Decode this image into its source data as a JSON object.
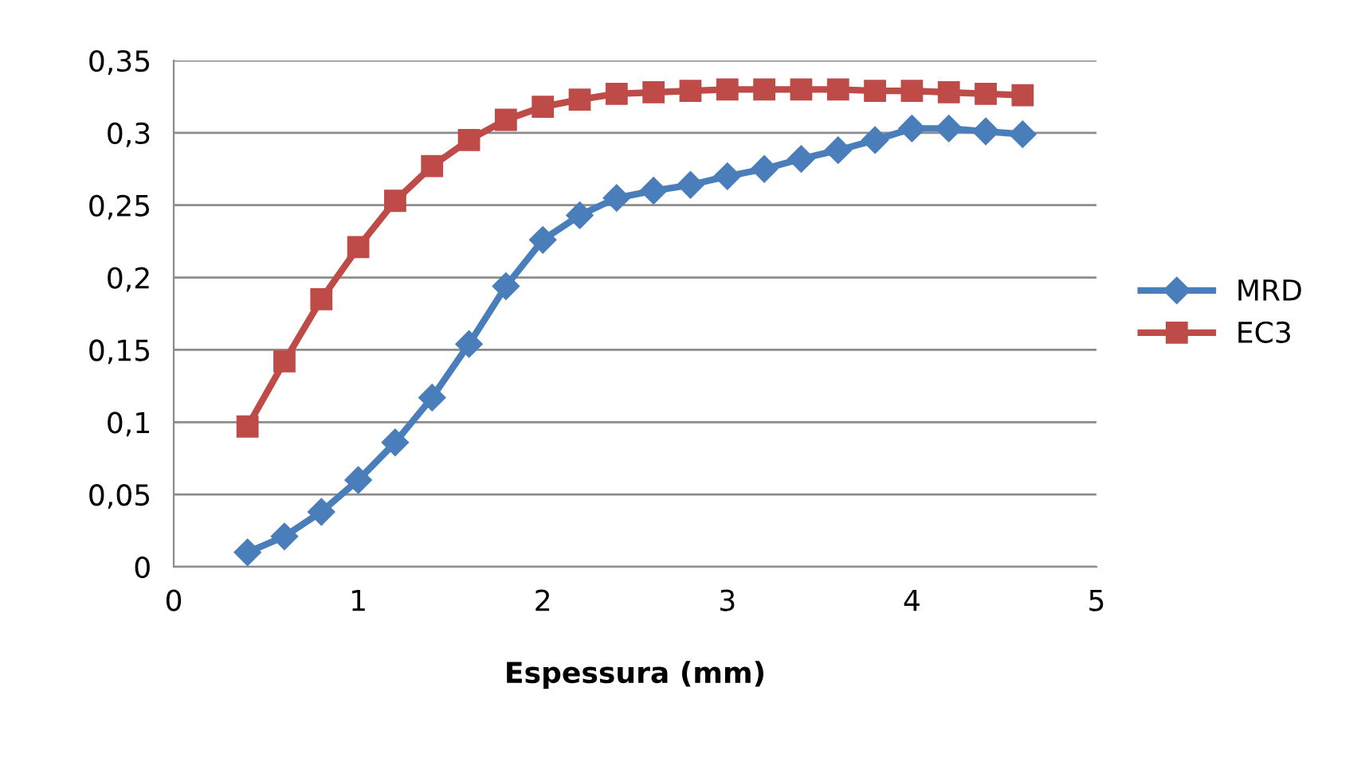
{
  "chart_data": {
    "type": "line",
    "xlabel": "Espessura (mm)",
    "x": [
      0.4,
      0.6,
      0.8,
      1.0,
      1.2,
      1.4,
      1.6,
      1.8,
      2.0,
      2.2,
      2.4,
      2.6,
      2.8,
      3.0,
      3.2,
      3.4,
      3.6,
      3.8,
      4.0,
      4.2,
      4.4,
      4.6
    ],
    "series": [
      {
        "name": "MRD",
        "color": "#4a7ebb",
        "marker": "diamond",
        "values": [
          0.01,
          0.021,
          0.038,
          0.06,
          0.086,
          0.117,
          0.154,
          0.194,
          0.226,
          0.243,
          0.255,
          0.26,
          0.264,
          0.27,
          0.275,
          0.282,
          0.288,
          0.295,
          0.303,
          0.303,
          0.301,
          0.299
        ]
      },
      {
        "name": "EC3",
        "color": "#be4b48",
        "marker": "square",
        "values": [
          0.097,
          0.142,
          0.185,
          0.221,
          0.253,
          0.277,
          0.295,
          0.309,
          0.318,
          0.323,
          0.327,
          0.328,
          0.329,
          0.33,
          0.33,
          0.33,
          0.33,
          0.329,
          0.329,
          0.328,
          0.327,
          0.326
        ]
      }
    ],
    "xlim": [
      0,
      5
    ],
    "xticks": [
      0,
      1,
      2,
      3,
      4,
      5
    ],
    "ylim": [
      0,
      0.35
    ],
    "yticks": [
      {
        "value": 0,
        "label": "0"
      },
      {
        "value": 0.05,
        "label": "0,05"
      },
      {
        "value": 0.1,
        "label": "0,1"
      },
      {
        "value": 0.15,
        "label": "0,15"
      },
      {
        "value": 0.2,
        "label": "0,2"
      },
      {
        "value": 0.25,
        "label": "0,25"
      },
      {
        "value": 0.3,
        "label": "0,3"
      },
      {
        "value": 0.35,
        "label": "0,35"
      }
    ],
    "grid": "y",
    "legend": "right",
    "line_style": "solid"
  }
}
